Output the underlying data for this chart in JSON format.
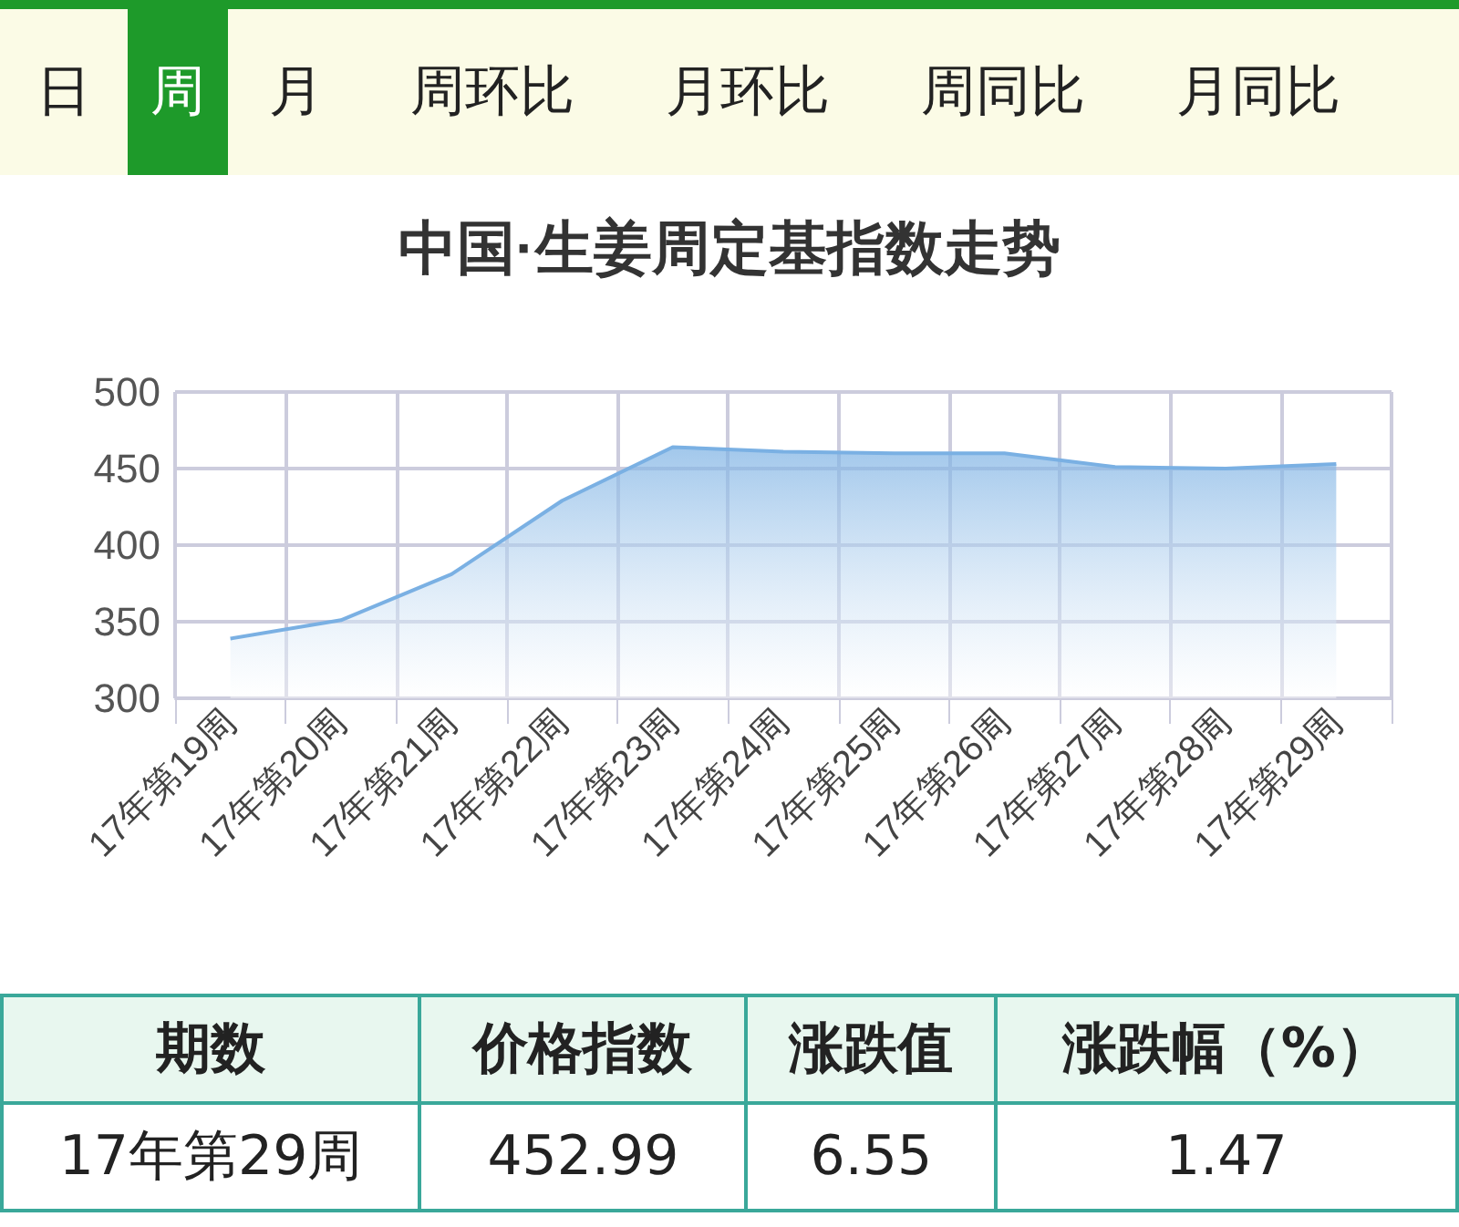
{
  "chart_data": [
    {
      "type": "other",
      "annotations": [
        "日",
        "周",
        "月",
        "周环比",
        "月环比",
        "周同比",
        "月同比"
      ],
      "colors": [
        "#fbfbe6",
        "#1e9a2a",
        "#fbfbe6",
        "#fbfbe6",
        "#fbfbe6",
        "#fbfbe6",
        "#fbfbe6"
      ]
    },
    {
      "type": "area",
      "title": "中国·生姜周定基指数走势",
      "categories": [
        "17年第19周",
        "17年第20周",
        "17年第21周",
        "17年第22周",
        "17年第23周",
        "17年第24周",
        "17年第25周",
        "17年第26周",
        "17年第27周",
        "17年第28周",
        "17年第29周"
      ],
      "series": [
        {
          "color": "#7ab0e3",
          "values": [
            339,
            351,
            381,
            429,
            464,
            461,
            460,
            460,
            451,
            450,
            452.99
          ]
        }
      ],
      "ylim": [
        300,
        500
      ],
      "yticks": [
        300,
        350,
        400,
        450,
        500
      ],
      "grid": true,
      "marker": "none"
    },
    {
      "type": "other",
      "annotations": [
        "期数",
        "价格指数",
        "涨跌值",
        "涨跌幅（%）",
        "17年第29周",
        "452.99",
        "6.55",
        "1.47"
      ]
    }
  ]
}
